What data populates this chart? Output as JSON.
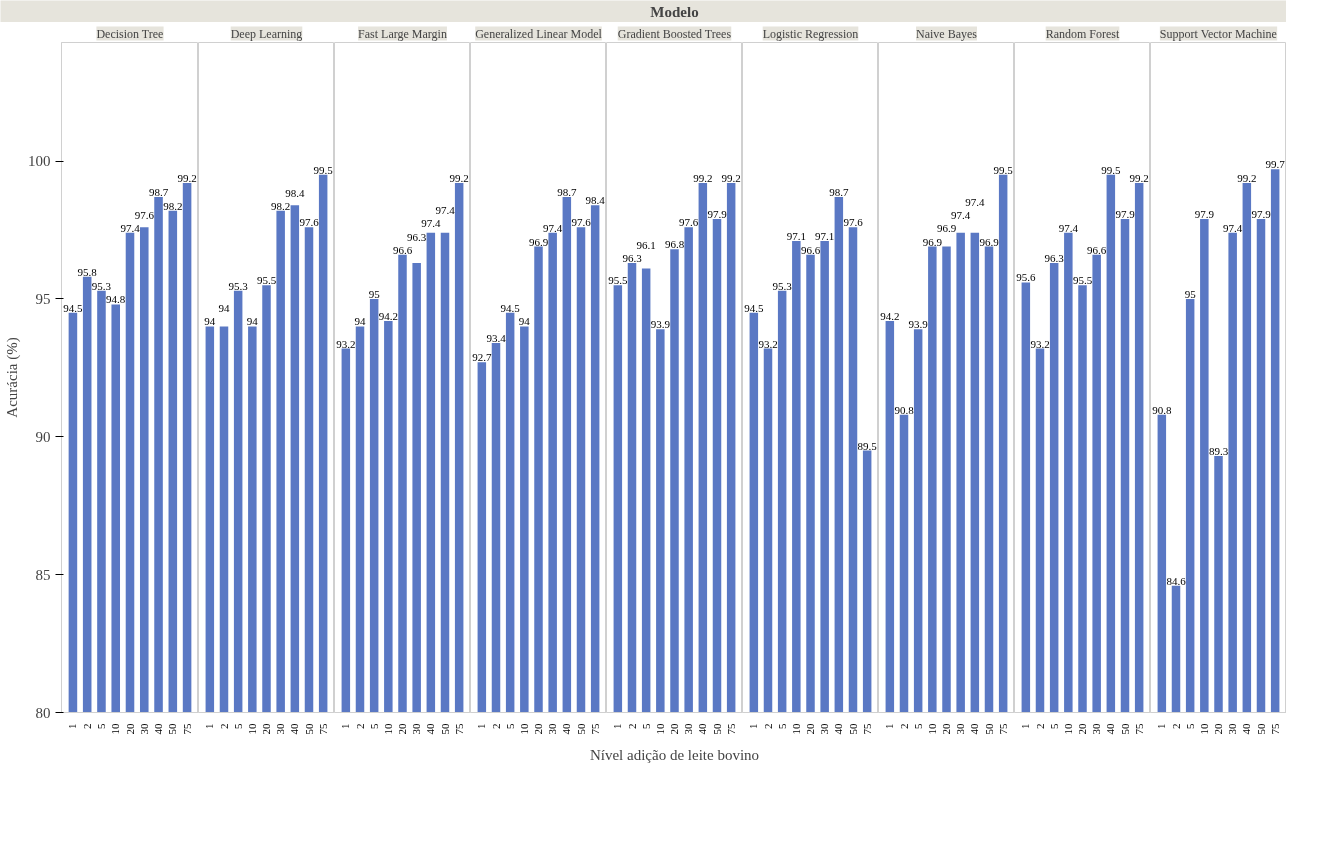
{
  "chart_data": [
    {
      "type": "bar",
      "title": "Decision Tree",
      "ylabel": "Acurácia (%)",
      "categories": [
        "1",
        "2",
        "5",
        "10",
        "20",
        "30",
        "40",
        "50",
        "75"
      ],
      "values": [
        94.5,
        95.8,
        95.3,
        94.8,
        97.4,
        97.6,
        98.7,
        98.2,
        99.2
      ],
      "color": "#5a78c4",
      "ylim": [
        80,
        104.3
      ],
      "yticks": [
        80,
        85,
        90,
        95,
        100
      ],
      "data_labels": true,
      "grid": false
    },
    {
      "type": "bar",
      "title": "Deep Learning",
      "categories": [
        "1",
        "2",
        "5",
        "10",
        "20",
        "30",
        "40",
        "50",
        "75"
      ],
      "values": [
        94,
        94,
        95.3,
        94,
        95.5,
        98.2,
        98.4,
        97.6,
        99.5
      ],
      "color": "#5a78c4",
      "ylim": [
        80,
        104.3
      ],
      "tick_labels": "x",
      "data_labels": true,
      "grid": false
    },
    {
      "type": "bar",
      "title": "Fast Large Margin",
      "categories": [
        "1",
        "2",
        "5",
        "10",
        "20",
        "30",
        "40",
        "50",
        "75"
      ],
      "values": [
        93.2,
        94,
        95,
        94.2,
        96.6,
        96.3,
        97.4,
        97.4,
        99.2
      ],
      "color": "#5a78c4",
      "ylim": [
        80,
        104.3
      ],
      "tick_labels": "x",
      "data_labels": true,
      "grid": false
    },
    {
      "type": "bar",
      "title": "Generalized Linear Model",
      "categories": [
        "1",
        "2",
        "5",
        "10",
        "20",
        "30",
        "40",
        "50",
        "75"
      ],
      "values": [
        92.7,
        93.4,
        94.5,
        94,
        96.9,
        97.4,
        98.7,
        97.6,
        98.4
      ],
      "color": "#5a78c4",
      "ylim": [
        80,
        104.3
      ],
      "tick_labels": "x",
      "data_labels": true,
      "grid": false
    },
    {
      "type": "bar",
      "title": "Gradient Boosted Trees",
      "annotations": [
        "Modelo"
      ],
      "xlabel": "Nível adição de leite bovino",
      "categories": [
        "1",
        "2",
        "5",
        "10",
        "20",
        "30",
        "40",
        "50",
        "75"
      ],
      "values": [
        95.5,
        96.3,
        96.1,
        93.9,
        96.8,
        97.6,
        99.2,
        97.9,
        99.2
      ],
      "color": "#5a78c4",
      "ylim": [
        80,
        104.3
      ],
      "tick_labels": "x",
      "data_labels": true,
      "grid": false
    },
    {
      "type": "bar",
      "title": "Logistic Regression",
      "categories": [
        "1",
        "2",
        "5",
        "10",
        "20",
        "30",
        "40",
        "50",
        "75"
      ],
      "values": [
        94.5,
        93.2,
        95.3,
        97.1,
        96.6,
        97.1,
        98.7,
        97.6,
        89.5
      ],
      "color": "#5a78c4",
      "ylim": [
        80,
        104.3
      ],
      "tick_labels": "x",
      "data_labels": true,
      "grid": false
    },
    {
      "type": "bar",
      "title": "Naive Bayes",
      "categories": [
        "1",
        "2",
        "5",
        "10",
        "20",
        "30",
        "40",
        "50",
        "75"
      ],
      "values": [
        94.2,
        90.8,
        93.9,
        96.9,
        96.9,
        97.4,
        97.4,
        96.9,
        99.5
      ],
      "color": "#5a78c4",
      "ylim": [
        80,
        104.3
      ],
      "tick_labels": "x",
      "data_labels": true,
      "grid": false
    },
    {
      "type": "bar",
      "title": "Random Forest",
      "categories": [
        "1",
        "2",
        "5",
        "10",
        "20",
        "30",
        "40",
        "50",
        "75"
      ],
      "values": [
        95.6,
        93.2,
        96.3,
        97.4,
        95.5,
        96.6,
        99.5,
        97.9,
        99.2
      ],
      "color": "#5a78c4",
      "ylim": [
        80,
        104.3
      ],
      "tick_labels": "x",
      "data_labels": true,
      "grid": false
    },
    {
      "type": "bar",
      "title": "Support Vector Machine",
      "categories": [
        "1",
        "2",
        "5",
        "10",
        "20",
        "30",
        "40",
        "50",
        "75"
      ],
      "values": [
        90.8,
        84.6,
        95,
        97.9,
        89.3,
        97.4,
        99.2,
        97.9,
        99.7
      ],
      "color": "#5a78c4",
      "ylim": [
        80,
        104.3
      ],
      "tick_labels": "x",
      "data_labels": true,
      "grid": false
    }
  ]
}
